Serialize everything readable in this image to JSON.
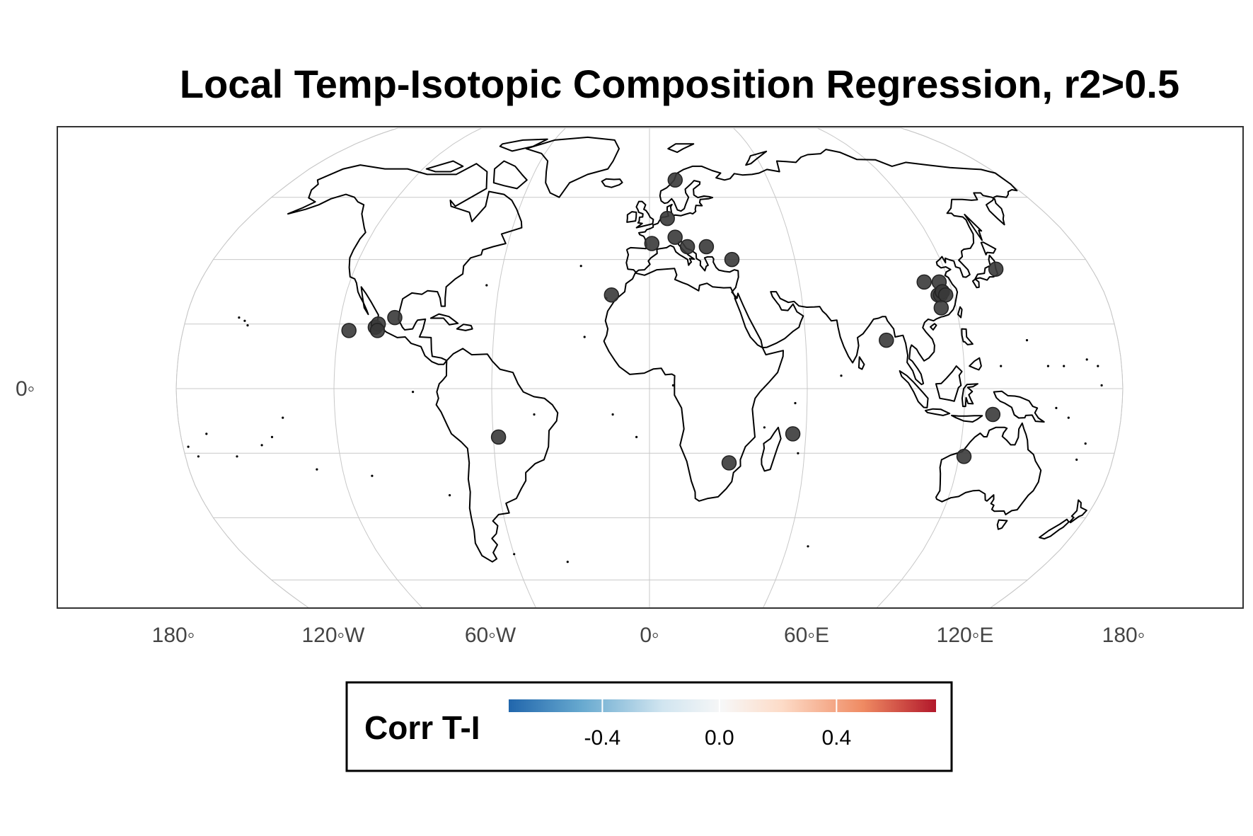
{
  "title": "Local Temp-Isotopic Composition Regression, r2>0.5",
  "map": {
    "projection": "robinson",
    "lon_labels": [
      "180◦",
      "120◦W",
      "60◦W",
      "0◦",
      "60◦E",
      "120◦E",
      "180◦"
    ],
    "lat_labels": [
      "0◦"
    ],
    "point_color": "#3a3a3a",
    "stations": [
      {
        "name": "station",
        "lon": 13,
        "lat": 66
      },
      {
        "name": "station",
        "lon": 8,
        "lat": 53
      },
      {
        "name": "station",
        "lon": 1,
        "lat": 45
      },
      {
        "name": "station",
        "lon": 11,
        "lat": 47
      },
      {
        "name": "station",
        "lon": 16,
        "lat": 44
      },
      {
        "name": "station",
        "lon": 24,
        "lat": 44
      },
      {
        "name": "station",
        "lon": 34,
        "lat": 40
      },
      {
        "name": "station",
        "lon": -15,
        "lat": 29
      },
      {
        "name": "station",
        "lon": -106,
        "lat": 19
      },
      {
        "name": "station",
        "lon": -116,
        "lat": 18
      },
      {
        "name": "station",
        "lon": -105,
        "lat": 20
      },
      {
        "name": "station",
        "lon": -105,
        "lat": 18
      },
      {
        "name": "station",
        "lon": -99,
        "lat": 22
      },
      {
        "name": "station",
        "lon": -58,
        "lat": -15
      },
      {
        "name": "station",
        "lon": 31,
        "lat": -23
      },
      {
        "name": "station",
        "lon": 55,
        "lat": -14
      },
      {
        "name": "station",
        "lon": 91,
        "lat": 15
      },
      {
        "name": "station",
        "lon": 110,
        "lat": 33
      },
      {
        "name": "station",
        "lon": 116,
        "lat": 33
      },
      {
        "name": "station",
        "lon": 114,
        "lat": 29
      },
      {
        "name": "station",
        "lon": 116,
        "lat": 30
      },
      {
        "name": "station",
        "lon": 115,
        "lat": 29
      },
      {
        "name": "station",
        "lon": 116,
        "lat": 30
      },
      {
        "name": "station",
        "lon": 117,
        "lat": 29
      },
      {
        "name": "station",
        "lon": 114,
        "lat": 25
      },
      {
        "name": "station",
        "lon": 141,
        "lat": 37
      },
      {
        "name": "station",
        "lon": 131,
        "lat": -8
      },
      {
        "name": "station",
        "lon": 122,
        "lat": -21
      }
    ]
  },
  "legend": {
    "title": "Corr T-I",
    "ticks": [
      "-0.4",
      "0.0",
      "0.4"
    ],
    "tick_values": [
      -0.4,
      0.0,
      0.4
    ],
    "range": [
      -0.72,
      0.74
    ],
    "colors": [
      "#2166ac",
      "#67a9cf",
      "#d1e5f0",
      "#f7f7f7",
      "#fddbc7",
      "#ef8a62",
      "#b2182b"
    ]
  }
}
